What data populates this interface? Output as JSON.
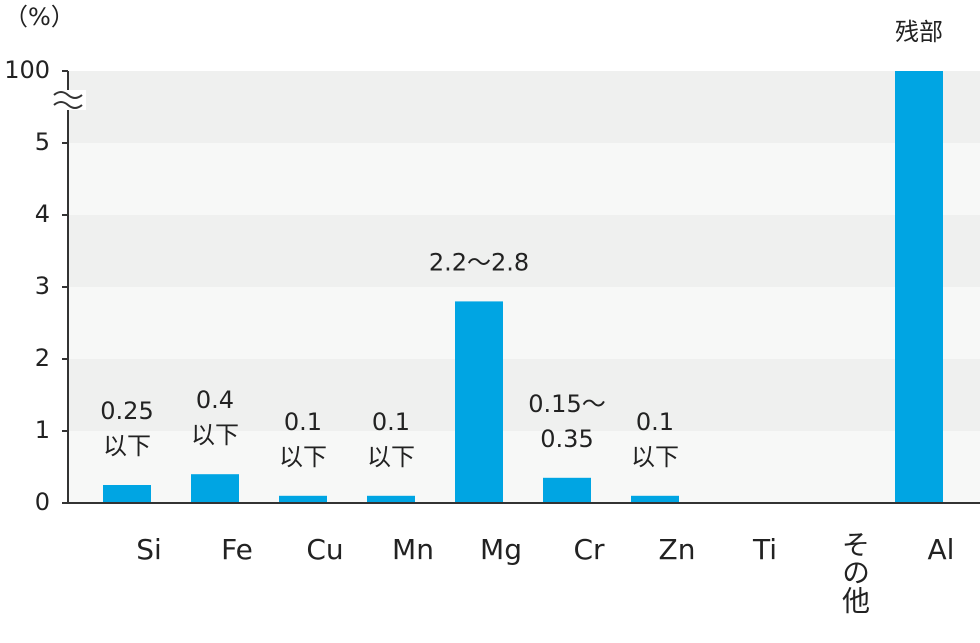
{
  "chart_data": {
    "type": "bar",
    "y_label": "（%）",
    "categories": [
      "Si",
      "Fe",
      "Cu",
      "Mn",
      "Mg",
      "Cr",
      "Zn",
      "Ti",
      "その他",
      "Al"
    ],
    "values": [
      0.25,
      0.4,
      0.1,
      0.1,
      2.8,
      0.35,
      0.1,
      null,
      null,
      100
    ],
    "value_labels": [
      [
        "0.25",
        "以下"
      ],
      [
        "0.4",
        "以下"
      ],
      [
        "0.1",
        "以下"
      ],
      [
        "0.1",
        "以下"
      ],
      [
        "2.2〜2.8"
      ],
      [
        "0.15〜",
        "0.35"
      ],
      [
        "0.1",
        "以下"
      ],
      null,
      null,
      [
        "残部"
      ]
    ],
    "color": "#00a5e3",
    "ylim": [
      0,
      100
    ],
    "y_break": [
      5.5,
      99.5
    ],
    "yticks": [
      0,
      1,
      2,
      3,
      4,
      5,
      100
    ],
    "band_colors": [
      "#f7f8f7",
      "#eff0ef"
    ]
  }
}
